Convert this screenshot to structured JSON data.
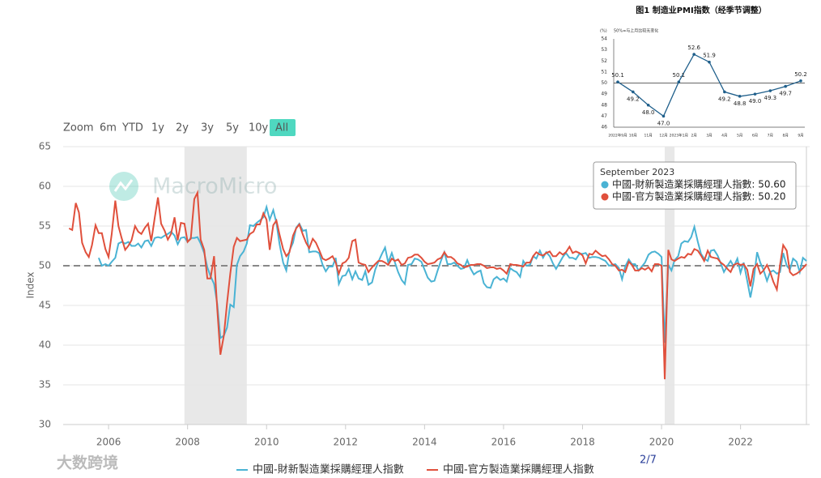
{
  "toolbar": {
    "label": "Zoom",
    "buttons": [
      "6m",
      "YTD",
      "1y",
      "2y",
      "3y",
      "5y",
      "10y",
      "All"
    ],
    "active": 7
  },
  "watermark": "MacroMicro",
  "brand": "大数跨境",
  "page_indicator": "2/7",
  "tooltip": {
    "title": "September 2023",
    "items": [
      "中國-財新製造業採購經理人指數: 50.60",
      "中國-官方製造業採購經理人指數: 50.20"
    ]
  },
  "chart_data": [
    {
      "type": "line",
      "y_label": "Index",
      "xlim": [
        2004.85,
        2023.75
      ],
      "ylim": [
        30,
        65
      ],
      "xticks": [
        2006,
        2008,
        2010,
        2012,
        2014,
        2016,
        2018,
        2020,
        2022
      ],
      "yticks": [
        30,
        35,
        40,
        45,
        50,
        55,
        60,
        65
      ],
      "grid": true,
      "reference_line": 50,
      "bands": [
        [
          2007.92,
          2009.5
        ],
        [
          2020.08,
          2020.33
        ]
      ],
      "x": [
        2005,
        2005.08,
        2005.17,
        2005.25,
        2005.33,
        2005.42,
        2005.5,
        2005.58,
        2005.67,
        2005.75,
        2005.83,
        2005.92,
        2006,
        2006.08,
        2006.17,
        2006.25,
        2006.33,
        2006.42,
        2006.5,
        2006.58,
        2006.67,
        2006.75,
        2006.83,
        2006.92,
        2007,
        2007.08,
        2007.17,
        2007.25,
        2007.33,
        2007.42,
        2007.5,
        2007.58,
        2007.67,
        2007.75,
        2007.83,
        2007.92,
        2008,
        2008.08,
        2008.17,
        2008.25,
        2008.33,
        2008.42,
        2008.5,
        2008.58,
        2008.67,
        2008.75,
        2008.83,
        2008.92,
        2009,
        2009.08,
        2009.17,
        2009.25,
        2009.33,
        2009.42,
        2009.5,
        2009.58,
        2009.67,
        2009.75,
        2009.83,
        2009.92,
        2010,
        2010.08,
        2010.17,
        2010.25,
        2010.33,
        2010.42,
        2010.5,
        2010.58,
        2010.67,
        2010.75,
        2010.83,
        2010.92,
        2011,
        2011.08,
        2011.17,
        2011.25,
        2011.33,
        2011.42,
        2011.5,
        2011.58,
        2011.67,
        2011.75,
        2011.83,
        2011.92,
        2012,
        2012.08,
        2012.17,
        2012.25,
        2012.33,
        2012.42,
        2012.5,
        2012.58,
        2012.67,
        2012.75,
        2012.83,
        2012.92,
        2013,
        2013.08,
        2013.17,
        2013.25,
        2013.33,
        2013.42,
        2013.5,
        2013.58,
        2013.67,
        2013.75,
        2013.83,
        2013.92,
        2014,
        2014.08,
        2014.17,
        2014.25,
        2014.33,
        2014.42,
        2014.5,
        2014.58,
        2014.67,
        2014.75,
        2014.83,
        2014.92,
        2015,
        2015.08,
        2015.17,
        2015.25,
        2015.33,
        2015.42,
        2015.5,
        2015.58,
        2015.67,
        2015.75,
        2015.83,
        2015.92,
        2016,
        2016.08,
        2016.17,
        2016.25,
        2016.33,
        2016.42,
        2016.5,
        2016.58,
        2016.67,
        2016.75,
        2016.83,
        2016.92,
        2017,
        2017.08,
        2017.17,
        2017.25,
        2017.33,
        2017.42,
        2017.5,
        2017.58,
        2017.67,
        2017.75,
        2017.83,
        2017.92,
        2018,
        2018.08,
        2018.17,
        2018.25,
        2018.33,
        2018.42,
        2018.5,
        2018.58,
        2018.67,
        2018.75,
        2018.83,
        2018.92,
        2019,
        2019.08,
        2019.17,
        2019.25,
        2019.33,
        2019.42,
        2019.5,
        2019.58,
        2019.67,
        2019.75,
        2019.83,
        2019.92,
        2020,
        2020.08,
        2020.17,
        2020.25,
        2020.33,
        2020.42,
        2020.5,
        2020.58,
        2020.67,
        2020.75,
        2020.83,
        2020.92,
        2021,
        2021.08,
        2021.17,
        2021.25,
        2021.33,
        2021.42,
        2021.5,
        2021.58,
        2021.67,
        2021.75,
        2021.83,
        2021.92,
        2022,
        2022.08,
        2022.17,
        2022.25,
        2022.33,
        2022.42,
        2022.5,
        2022.58,
        2022.67,
        2022.75,
        2022.83,
        2022.92,
        2023,
        2023.08,
        2023.17,
        2023.25,
        2023.33,
        2023.42,
        2023.5,
        2023.58,
        2023.67
      ],
      "series": [
        {
          "name": "中國-財新製造業採購經理人指數",
          "color": "#4ab3d4",
          "values": [
            null,
            null,
            null,
            null,
            null,
            null,
            null,
            null,
            null,
            51.0,
            50.0,
            50.2,
            50.0,
            50.5,
            51.0,
            52.8,
            53.0,
            52.8,
            53.0,
            52.5,
            52.5,
            52.8,
            52.3,
            53.1,
            53.2,
            52.5,
            53.5,
            53.6,
            53.5,
            53.8,
            54.0,
            54.3,
            53.8,
            52.7,
            53.5,
            53.6,
            53.0,
            53.5,
            53.5,
            53.6,
            52.8,
            51.6,
            49.8,
            48.7,
            47.7,
            45.2,
            40.9,
            41.2,
            42.2,
            45.1,
            44.8,
            50.1,
            51.2,
            51.8,
            52.8,
            55.1,
            55.0,
            55.4,
            55.7,
            56.1,
            57.4,
            55.8,
            57.0,
            55.4,
            52.7,
            50.4,
            49.4,
            51.9,
            52.9,
            54.8,
            55.3,
            54.4,
            54.5,
            51.7,
            51.8,
            51.8,
            51.6,
            50.1,
            49.3,
            49.9,
            49.9,
            51.0,
            47.7,
            48.7,
            48.8,
            49.6,
            48.3,
            49.3,
            48.4,
            48.2,
            49.3,
            47.6,
            47.9,
            49.5,
            50.5,
            51.5,
            52.3,
            50.4,
            51.6,
            50.4,
            49.2,
            48.2,
            47.7,
            50.1,
            50.2,
            50.9,
            50.8,
            50.5,
            49.5,
            48.5,
            48.0,
            48.1,
            49.4,
            50.7,
            51.7,
            50.2,
            50.2,
            50.4,
            50.0,
            49.6,
            49.7,
            50.7,
            49.6,
            48.9,
            49.2,
            49.4,
            47.8,
            47.3,
            47.2,
            48.3,
            48.6,
            48.2,
            48.4,
            48.0,
            49.7,
            49.4,
            49.2,
            48.6,
            50.6,
            50.0,
            50.1,
            51.2,
            50.9,
            51.9,
            51.0,
            51.7,
            51.2,
            50.3,
            49.6,
            50.4,
            51.1,
            51.6,
            51.0,
            51.0,
            50.8,
            51.5,
            51.5,
            51.6,
            51.0,
            51.1,
            51.1,
            51.0,
            50.8,
            50.6,
            50.0,
            50.1,
            50.2,
            49.7,
            48.3,
            49.9,
            50.8,
            50.2,
            50.2,
            49.4,
            49.9,
            50.4,
            51.4,
            51.7,
            51.8,
            51.5,
            51.1,
            40.3,
            50.1,
            49.4,
            50.7,
            51.2,
            52.8,
            53.1,
            53.0,
            53.6,
            54.9,
            53.0,
            51.5,
            50.9,
            50.6,
            51.9,
            52.0,
            51.3,
            50.3,
            49.2,
            50.0,
            50.6,
            49.9,
            50.9,
            49.1,
            50.4,
            48.1,
            46.0,
            48.1,
            51.7,
            50.4,
            49.5,
            48.1,
            49.2,
            49.4,
            49.0,
            49.2,
            51.6,
            50.0,
            49.5,
            50.9,
            50.5,
            49.2,
            51.0,
            50.6
          ]
        },
        {
          "name": "中國-官方製造業採購經理人指數",
          "color": "#e0503c",
          "values": [
            54.7,
            54.5,
            57.9,
            56.7,
            52.9,
            51.7,
            51.1,
            52.6,
            55.1,
            54.1,
            54.1,
            52.1,
            51.1,
            54.0,
            58.2,
            55.0,
            53.5,
            52.0,
            52.5,
            53.2,
            55.0,
            54.3,
            54.0,
            54.8,
            55.3,
            53.1,
            56.1,
            58.6,
            55.3,
            54.4,
            53.3,
            54.0,
            56.1,
            53.2,
            55.4,
            55.3,
            53.0,
            53.4,
            58.4,
            59.2,
            53.3,
            52.0,
            48.4,
            48.4,
            51.2,
            44.6,
            38.8,
            41.2,
            45.3,
            49.0,
            52.4,
            53.5,
            53.1,
            53.2,
            53.3,
            54.0,
            54.3,
            55.2,
            55.2,
            56.6,
            55.8,
            52.0,
            55.1,
            55.7,
            53.9,
            52.1,
            51.2,
            51.7,
            53.8,
            54.7,
            55.2,
            53.9,
            52.9,
            52.2,
            53.4,
            52.9,
            52.0,
            50.9,
            50.7,
            50.9,
            51.2,
            50.4,
            49.0,
            50.3,
            50.5,
            51.0,
            53.1,
            53.3,
            50.4,
            50.2,
            50.1,
            49.2,
            49.8,
            50.2,
            50.6,
            50.6,
            50.4,
            50.1,
            50.9,
            50.6,
            50.8,
            50.1,
            50.3,
            51.0,
            51.1,
            51.4,
            51.4,
            51.0,
            50.5,
            50.2,
            50.3,
            50.4,
            50.8,
            51.0,
            51.7,
            51.1,
            51.1,
            50.8,
            50.3,
            50.1,
            49.8,
            49.9,
            50.1,
            50.1,
            50.2,
            50.2,
            50.0,
            49.7,
            49.8,
            49.8,
            49.6,
            49.7,
            49.4,
            49.0,
            50.2,
            50.1,
            50.1,
            50.0,
            49.9,
            50.4,
            50.4,
            51.2,
            51.7,
            51.4,
            51.3,
            51.6,
            51.8,
            51.2,
            51.2,
            51.7,
            51.4,
            51.7,
            52.4,
            51.6,
            51.8,
            51.6,
            51.3,
            50.3,
            51.5,
            51.4,
            51.9,
            51.5,
            51.2,
            51.3,
            50.8,
            50.2,
            50.0,
            49.4,
            49.5,
            49.2,
            50.5,
            50.1,
            49.4,
            49.4,
            49.7,
            49.5,
            49.8,
            49.3,
            50.2,
            50.2,
            50.0,
            35.7,
            52.0,
            50.8,
            50.6,
            50.9,
            51.1,
            51.0,
            51.5,
            51.4,
            52.1,
            51.9,
            51.3,
            50.6,
            51.9,
            51.1,
            51.0,
            50.9,
            50.4,
            50.1,
            49.6,
            49.2,
            50.1,
            50.3,
            50.1,
            50.2,
            49.5,
            47.4,
            49.6,
            50.2,
            49.0,
            49.4,
            50.1,
            49.2,
            48.0,
            47.0,
            50.1,
            52.6,
            51.9,
            49.2,
            48.8,
            49.0,
            49.3,
            49.7,
            50.2
          ]
        }
      ]
    },
    {
      "type": "line",
      "title": "图1  制造业PMI指数（经季节调整）",
      "subtitle": "50%=与上月比较无变化",
      "y_unit": "(%)",
      "ylim": [
        46,
        54
      ],
      "yticks": [
        46,
        47,
        48,
        49,
        50,
        51,
        52,
        53,
        54
      ],
      "reference_line": 50,
      "markers": true,
      "categories": [
        "2022年9月",
        "10月",
        "11月",
        "12月",
        "2023年1月",
        "2月",
        "3月",
        "4月",
        "5月",
        "6月",
        "7月",
        "8月",
        "9月"
      ],
      "series": [
        {
          "color": "#1f5f8b",
          "values": [
            50.1,
            49.2,
            48.0,
            47.0,
            50.1,
            52.6,
            51.9,
            49.2,
            48.8,
            49.0,
            49.3,
            49.7,
            50.2
          ],
          "value_labels": [
            "50.1",
            "49.2",
            "48.0",
            "47.0",
            "50.1",
            "52.6",
            "51.9",
            "49.2",
            "48.8",
            "49.0",
            "49.3",
            "49.7",
            "50.2"
          ]
        }
      ]
    }
  ]
}
